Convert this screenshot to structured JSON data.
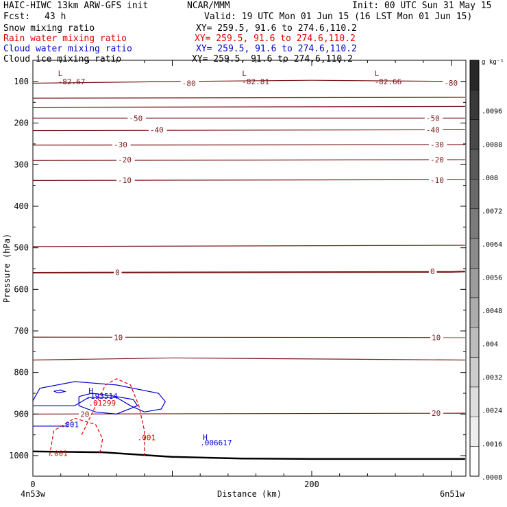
{
  "header": {
    "model": "HAIC-HIWC 13km ARW-GFS init",
    "org": "NCAR/MMM",
    "init": "Init: 00 UTC Sun 31 May 15",
    "fcst_label": "Fcst:",
    "fcst_value": "43 h",
    "valid": "Valid: 19 UTC Mon 01 Jun 15 (16 LST Mon 01 Jun 15)"
  },
  "legend": [
    {
      "label": "Snow mixing ratio",
      "xy": "XY= 259.5, 91.6 to 274.6,110.2",
      "color": "#000000"
    },
    {
      "label": "Rain water mixing ratio",
      "xy": "XY= 259.5, 91.6 to 274.6,110.2",
      "color": "#e00000"
    },
    {
      "label": "Cloud water mixing ratio",
      "xy": "XY= 259.5, 91.6 to 274.6,110.2",
      "color": "#0000cc"
    },
    {
      "label": "Cloud ice mixing ratio",
      "xy": "XY= 259.5, 91.6 to 274.6,110.2",
      "color": "#000000"
    }
  ],
  "chart_data": {
    "type": "cross-section contour",
    "ylabel": "Pressure (hPa)",
    "xlabel": "Distance (km)",
    "x_start_label": "4n53w",
    "x_end_label": "6n51w",
    "xlim": [
      0,
      310
    ],
    "ylim": [
      1050,
      60
    ],
    "x_ticks": [
      0,
      200
    ],
    "y_ticks": [
      100,
      200,
      300,
      400,
      500,
      600,
      700,
      800,
      900,
      1000
    ],
    "temperature_contours": [
      {
        "value": -80,
        "label": "-80",
        "points": [
          [
            0,
            104
          ],
          [
            100,
            100
          ],
          [
            200,
            97
          ],
          [
            310,
            100
          ]
        ]
      },
      {
        "value": -70,
        "label": "",
        "points": [
          [
            0,
            140
          ],
          [
            310,
            138
          ]
        ]
      },
      {
        "value": -60,
        "label": "",
        "points": [
          [
            0,
            162
          ],
          [
            310,
            160
          ]
        ]
      },
      {
        "value": -50,
        "label": "-50",
        "points": [
          [
            0,
            188
          ],
          [
            310,
            188
          ]
        ]
      },
      {
        "value": -40,
        "label": "-40",
        "points": [
          [
            0,
            218
          ],
          [
            310,
            216
          ]
        ]
      },
      {
        "value": -30,
        "label": "-30",
        "points": [
          [
            0,
            253
          ],
          [
            310,
            252
          ]
        ]
      },
      {
        "value": -20,
        "label": "-20",
        "points": [
          [
            0,
            290
          ],
          [
            310,
            288
          ]
        ]
      },
      {
        "value": -10,
        "label": "-10",
        "points": [
          [
            0,
            338
          ],
          [
            310,
            336
          ]
        ]
      },
      {
        "value": 0,
        "label": "0",
        "points": [
          [
            0,
            560
          ],
          [
            300,
            558
          ],
          [
            310,
            557
          ]
        ]
      },
      {
        "value": 5,
        "label": "",
        "points": [
          [
            0,
            497
          ],
          [
            310,
            494
          ]
        ]
      },
      {
        "value": 10,
        "label": "10",
        "points": [
          [
            0,
            715
          ],
          [
            310,
            716
          ]
        ]
      },
      {
        "value": 15,
        "label": "",
        "points": [
          [
            0,
            770
          ],
          [
            100,
            765
          ],
          [
            310,
            770
          ]
        ]
      },
      {
        "value": 20,
        "label": "20",
        "points": [
          [
            0,
            900
          ],
          [
            310,
            898
          ]
        ]
      }
    ],
    "temperature_labels": [
      {
        "text": "-80",
        "x": 107,
        "p": 104
      },
      {
        "text": "-80",
        "x": 295,
        "p": 103
      },
      {
        "text": "-50",
        "x": 69,
        "p": 188
      },
      {
        "text": "-50",
        "x": 282,
        "p": 188
      },
      {
        "text": "-40",
        "x": 84,
        "p": 216
      },
      {
        "text": "-40",
        "x": 282,
        "p": 216
      },
      {
        "text": "-30",
        "x": 58,
        "p": 252
      },
      {
        "text": "-30",
        "x": 285,
        "p": 252
      },
      {
        "text": "-20",
        "x": 61,
        "p": 288
      },
      {
        "text": "-20",
        "x": 285,
        "p": 288
      },
      {
        "text": "-10",
        "x": 61,
        "p": 337
      },
      {
        "text": "-10",
        "x": 285,
        "p": 337
      },
      {
        "text": "0",
        "x": 59,
        "p": 559
      },
      {
        "text": "0",
        "x": 285,
        "p": 557
      },
      {
        "text": "10",
        "x": 58,
        "p": 716
      },
      {
        "text": "10",
        "x": 286,
        "p": 716
      },
      {
        "text": "20",
        "x": 34,
        "p": 900
      },
      {
        "text": "20",
        "x": 286,
        "p": 898
      }
    ],
    "extrema": [
      {
        "mark": "L",
        "value": "-82.67",
        "x": 18,
        "p": 100
      },
      {
        "mark": "L",
        "value": "-82.81",
        "x": 150,
        "p": 100
      },
      {
        "mark": "L",
        "value": "-82.66",
        "x": 245,
        "p": 100
      }
    ],
    "cloud_water": {
      "max_label": "H",
      "max_value": ".193514",
      "max2_label": "H",
      "max2_value": ".006617",
      "contour": ".001"
    },
    "rain_water": {
      "max_value": ".01299",
      "contour": ".001"
    },
    "colorbar": {
      "unit": "g kg⁻¹",
      "ticks": [
        ".0096",
        ".0088",
        ".008",
        ".0072",
        ".0064",
        ".0056",
        ".0048",
        ".004",
        ".0032",
        ".0024",
        ".0016",
        ".0008"
      ]
    }
  }
}
